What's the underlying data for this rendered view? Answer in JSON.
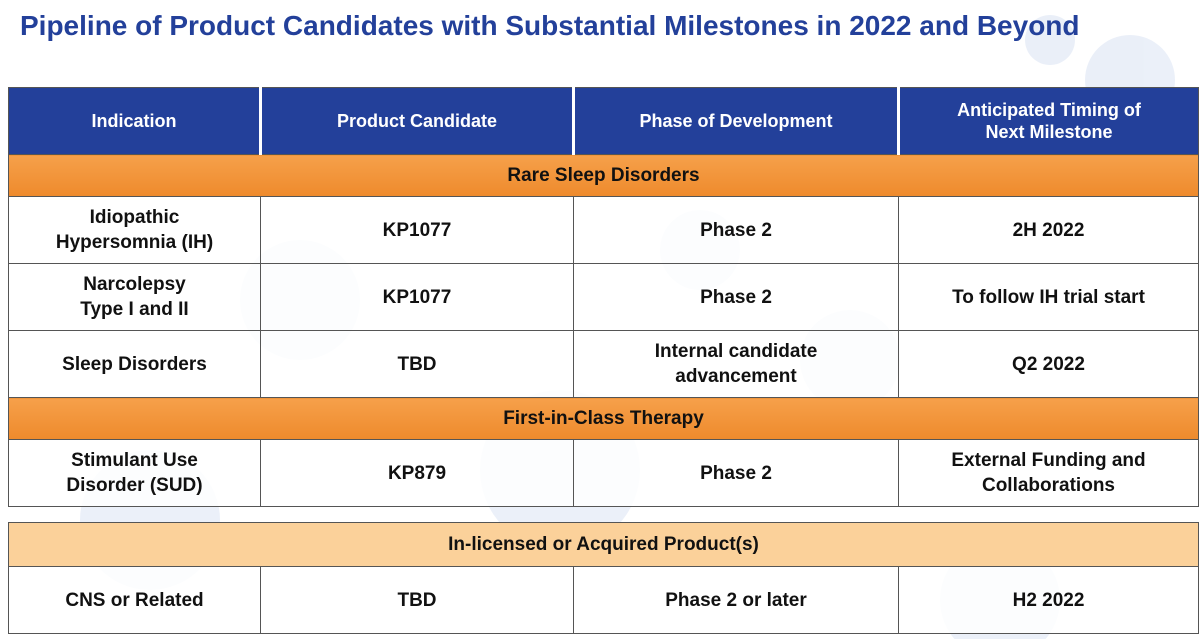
{
  "title": "Pipeline of Product Candidates with Substantial Milestones in 2022 and Beyond",
  "header": [
    "Indication",
    "Product Candidate",
    "Phase of Development",
    "Anticipated Timing of\nNext Milestone"
  ],
  "sections": [
    {
      "label": "Rare Sleep Disorders",
      "rows": [
        [
          "Idiopathic\nHypersomnia (IH)",
          "KP1077",
          "Phase 2",
          "2H 2022"
        ],
        [
          "Narcolepsy\nType I and II",
          "KP1077",
          "Phase 2",
          "To follow IH trial start"
        ],
        [
          "Sleep Disorders",
          "TBD",
          "Internal candidate\nadvancement",
          "Q2 2022"
        ]
      ]
    },
    {
      "label": "First-in-Class Therapy",
      "rows": [
        [
          "Stimulant Use\nDisorder (SUD)",
          "KP879",
          "Phase 2",
          "External Funding and\nCollaborations"
        ]
      ]
    }
  ],
  "second_table": {
    "sections": [
      {
        "label": "In-licensed or Acquired Product(s)",
        "rows": [
          [
            "CNS or Related",
            "TBD",
            "Phase 2 or later",
            "H2 2022"
          ]
        ]
      }
    ]
  }
}
